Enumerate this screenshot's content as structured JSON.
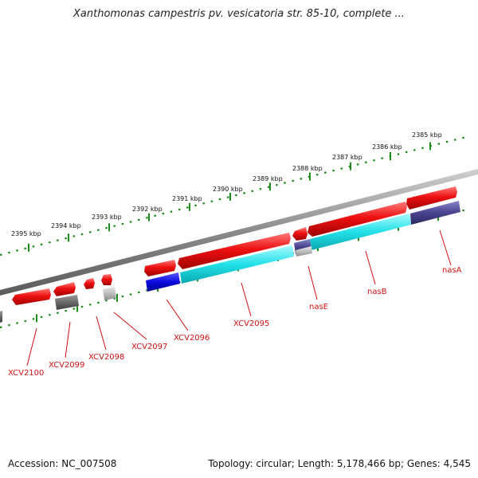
{
  "header": {
    "title": "Xanthomonas campestris pv. vesicatoria str. 85-10, complete ..."
  },
  "footer": {
    "accession": "Accession: NC_007508",
    "stats": "Topology: circular; Length: 5,178,466 bp; Genes: 4,545"
  },
  "scale": {
    "ticks": [
      {
        "label": "2385 kbp"
      },
      {
        "label": "2386 kbp"
      },
      {
        "label": "2387 kbp"
      },
      {
        "label": "2388 kbp"
      },
      {
        "label": "2389 kbp"
      },
      {
        "label": "2390 kbp"
      },
      {
        "label": "2391 kbp"
      },
      {
        "label": "2392 kbp"
      },
      {
        "label": "2393 kbp"
      },
      {
        "label": "2394 kbp"
      },
      {
        "label": "2395 kbp"
      }
    ]
  },
  "genes": [
    {
      "label": "nasA"
    },
    {
      "label": "nasB"
    },
    {
      "label": "nasE"
    },
    {
      "label": "XCV2095"
    },
    {
      "label": "XCV2096"
    },
    {
      "label": "XCV2097"
    },
    {
      "label": "XCV2098"
    },
    {
      "label": "XCV2099"
    },
    {
      "label": "XCV2100"
    }
  ],
  "colors": {
    "gene_arrow": "#ee1111",
    "cds_cyan": "#22e0e8",
    "cds_blue": "#0a0ae0",
    "cds_indigo": "#4a4490",
    "cds_dark_gray": "#6a6a6a",
    "cds_light_gray": "#bdbdbd",
    "backbone": "#8a8a8a",
    "tick_green": "#1a8a1a",
    "label_red": "#d01010"
  }
}
